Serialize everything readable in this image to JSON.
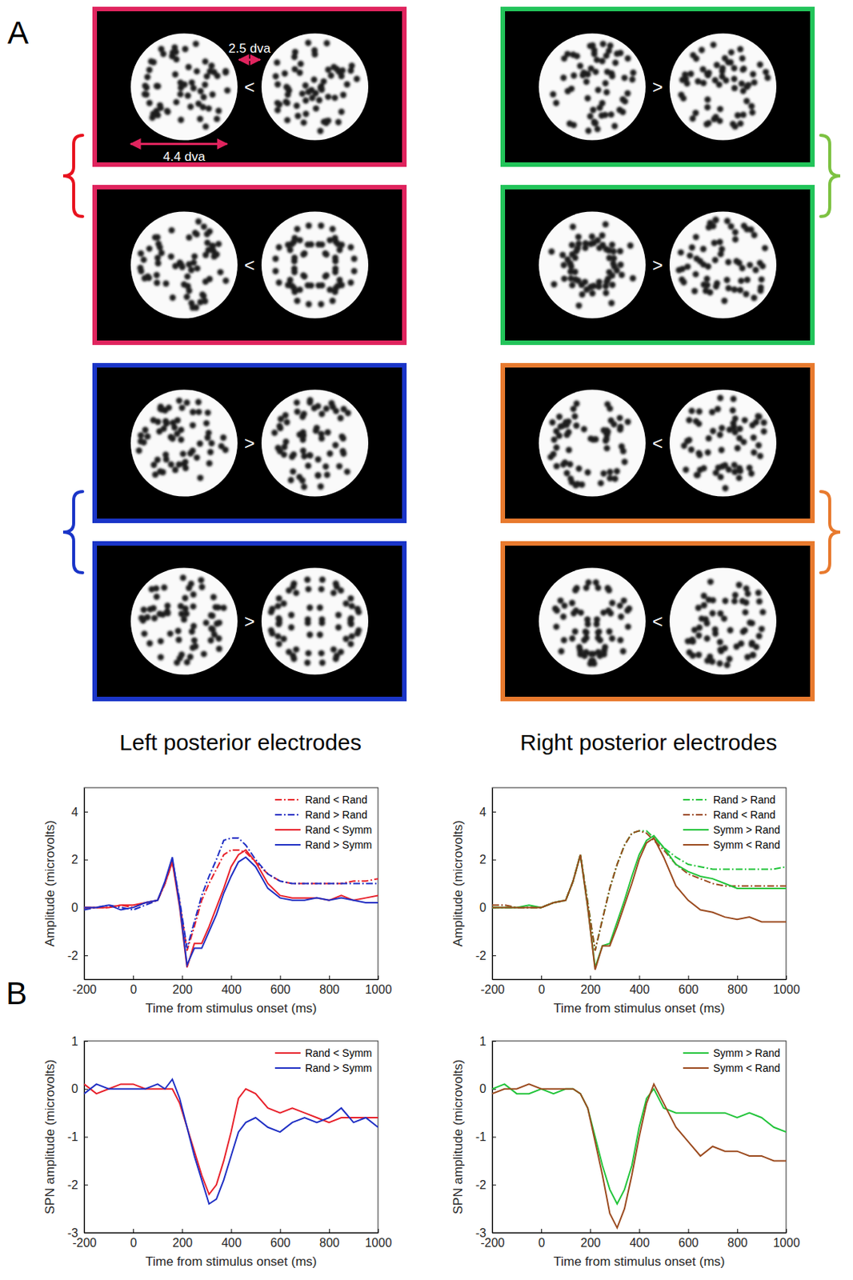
{
  "panel_a": {
    "label": "A",
    "annotations": {
      "gap": "2.5 dva",
      "diameter": "4.4 dva"
    },
    "groups": [
      {
        "side": "left",
        "brace_color": "#e8131f",
        "displays": [
          {
            "symbol": "<",
            "color": "#e0245e"
          },
          {
            "symbol": "<",
            "color": "#e0245e"
          }
        ]
      },
      {
        "side": "left",
        "brace_color": "#1a35c8",
        "displays": [
          {
            "symbol": ">",
            "color": "#1a35c8"
          },
          {
            "symbol": ">",
            "color": "#1a35c8"
          }
        ]
      },
      {
        "side": "right",
        "brace_color": "#7dc242",
        "displays": [
          {
            "symbol": ">",
            "color": "#22c45a"
          },
          {
            "symbol": ">",
            "color": "#22c45a"
          }
        ]
      },
      {
        "side": "right",
        "brace_color": "#e87a2e",
        "displays": [
          {
            "symbol": "<",
            "color": "#e87a2e"
          },
          {
            "symbol": "<",
            "color": "#e87a2e"
          }
        ]
      }
    ]
  },
  "panel_b": {
    "label": "B",
    "column_titles": [
      "Left posterior electrodes",
      "Right posterior electrodes"
    ]
  },
  "chart_data": [
    {
      "type": "line",
      "xlabel": "Time from stimulus onset (ms)",
      "ylabel": "Amplitude (microvolts)",
      "x": [
        -200,
        -150,
        -100,
        -50,
        0,
        50,
        100,
        130,
        160,
        190,
        220,
        250,
        280,
        310,
        340,
        370,
        400,
        430,
        460,
        500,
        550,
        600,
        650,
        700,
        750,
        800,
        850,
        900,
        950,
        1000
      ],
      "xlim": [
        -200,
        1000
      ],
      "xticks": [
        -200,
        0,
        200,
        400,
        600,
        800,
        1000
      ],
      "ylim": [
        -3,
        5
      ],
      "yticks": [
        -2,
        0,
        2,
        4
      ],
      "legend": "upper right",
      "series": [
        {
          "name": "Rand < Rand",
          "color": "#e8202a",
          "line_style": "dashdot",
          "values": [
            0,
            0,
            0,
            0.1,
            0,
            0.2,
            0.3,
            1.0,
            1.9,
            0.2,
            -1.8,
            -0.8,
            0.3,
            1.0,
            1.6,
            2.2,
            2.4,
            2.4,
            2.3,
            1.9,
            1.4,
            1.1,
            1.0,
            1.0,
            1.0,
            1.0,
            1.0,
            1.1,
            1.1,
            1.2
          ]
        },
        {
          "name": "Rand > Rand",
          "color": "#1f2fc4",
          "line_style": "dashdot",
          "values": [
            -0.1,
            0,
            0.1,
            0,
            -0.1,
            0.1,
            0.3,
            1.0,
            2.0,
            0.3,
            -1.7,
            -0.6,
            0.5,
            1.3,
            2.0,
            2.8,
            2.9,
            2.9,
            2.6,
            2.0,
            1.4,
            1.1,
            1.0,
            1.0,
            1.0,
            1.0,
            1.0,
            1.0,
            1.0,
            1.0
          ]
        },
        {
          "name": "Rand < Symm",
          "color": "#e8202a",
          "line_style": "solid",
          "values": [
            0,
            0,
            0,
            0.1,
            0.1,
            0.2,
            0.3,
            1.0,
            1.9,
            0,
            -2.5,
            -1.5,
            -1.5,
            -0.8,
            0,
            0.8,
            1.7,
            2.2,
            2.4,
            1.9,
            1.0,
            0.5,
            0.4,
            0.4,
            0.4,
            0.3,
            0.5,
            0.3,
            0.4,
            0.5
          ]
        },
        {
          "name": "Rand > Symm",
          "color": "#1f2fc4",
          "line_style": "solid",
          "values": [
            0,
            0,
            0.1,
            -0.1,
            0,
            0.2,
            0.3,
            1.1,
            2.1,
            0.1,
            -2.4,
            -1.7,
            -1.7,
            -1.0,
            -0.3,
            0.6,
            1.3,
            1.9,
            2.1,
            1.7,
            0.8,
            0.4,
            0.3,
            0.3,
            0.4,
            0.3,
            0.4,
            0.3,
            0.2,
            0.2
          ]
        }
      ]
    },
    {
      "type": "line",
      "xlabel": "Time from stimulus onset (ms)",
      "ylabel": "Amplitude (microvolts)",
      "x": [
        -200,
        -150,
        -100,
        -50,
        0,
        50,
        100,
        130,
        160,
        190,
        220,
        250,
        280,
        310,
        340,
        370,
        400,
        430,
        460,
        500,
        550,
        600,
        650,
        700,
        750,
        800,
        850,
        900,
        950,
        1000
      ],
      "xlim": [
        -200,
        1000
      ],
      "xticks": [
        -200,
        0,
        200,
        400,
        600,
        800,
        1000
      ],
      "ylim": [
        -3,
        5
      ],
      "yticks": [
        -2,
        0,
        2,
        4
      ],
      "legend": "upper right",
      "series": [
        {
          "name": "Rand > Rand",
          "color": "#22c43a",
          "line_style": "dashdot",
          "values": [
            0,
            0,
            0,
            0,
            0,
            0.2,
            0.3,
            1.1,
            2.2,
            0.2,
            -1.8,
            -0.5,
            0.8,
            1.8,
            2.6,
            3.1,
            3.2,
            3.2,
            2.9,
            2.5,
            2.1,
            1.8,
            1.7,
            1.6,
            1.6,
            1.6,
            1.6,
            1.6,
            1.6,
            1.7
          ]
        },
        {
          "name": "Rand < Rand",
          "color": "#9b4a1e",
          "line_style": "dashdot",
          "values": [
            0.1,
            0.1,
            0,
            0,
            0,
            0.2,
            0.3,
            1.1,
            2.2,
            0.2,
            -1.8,
            -0.5,
            0.8,
            1.8,
            2.6,
            3.1,
            3.2,
            3.1,
            2.8,
            2.4,
            1.8,
            1.4,
            1.2,
            1.0,
            0.9,
            0.9,
            0.9,
            0.9,
            0.9,
            0.9
          ]
        },
        {
          "name": "Symm > Rand",
          "color": "#22c43a",
          "line_style": "solid",
          "values": [
            0,
            0,
            0,
            0.1,
            0,
            0.2,
            0.3,
            1.1,
            2.2,
            0,
            -2.5,
            -1.6,
            -1.5,
            -0.6,
            0.3,
            1.3,
            2.2,
            2.8,
            3.0,
            2.5,
            1.8,
            1.5,
            1.3,
            1.2,
            1.0,
            0.8,
            0.8,
            0.8,
            0.8,
            0.8
          ]
        },
        {
          "name": "Symm < Rand",
          "color": "#9b4a1e",
          "line_style": "solid",
          "values": [
            0,
            0,
            0,
            0,
            0,
            0.2,
            0.3,
            1.1,
            2.2,
            0,
            -2.6,
            -1.6,
            -1.6,
            -0.8,
            0.1,
            1.0,
            2.0,
            2.7,
            2.9,
            2.1,
            0.9,
            0.3,
            -0.1,
            -0.2,
            -0.4,
            -0.5,
            -0.4,
            -0.6,
            -0.6,
            -0.6
          ]
        }
      ]
    },
    {
      "type": "line",
      "xlabel": "Time from stimulus onset (ms)",
      "ylabel": "SPN amplitude (microvolts)",
      "x": [
        -200,
        -150,
        -100,
        -50,
        0,
        50,
        100,
        130,
        160,
        190,
        220,
        250,
        280,
        310,
        340,
        370,
        400,
        430,
        460,
        500,
        550,
        600,
        650,
        700,
        750,
        800,
        850,
        900,
        950,
        1000
      ],
      "xlim": [
        -200,
        1000
      ],
      "xticks": [
        -200,
        0,
        200,
        400,
        600,
        800,
        1000
      ],
      "ylim": [
        -3,
        1
      ],
      "yticks": [
        -3,
        -2,
        -1,
        0,
        1
      ],
      "legend": "upper right",
      "series": [
        {
          "name": "Rand < Symm",
          "color": "#e8202a",
          "line_style": "solid",
          "values": [
            0.1,
            -0.1,
            0,
            0.1,
            0.1,
            0,
            0,
            0,
            0,
            -0.3,
            -0.8,
            -1.3,
            -1.8,
            -2.2,
            -2.0,
            -1.5,
            -0.9,
            -0.2,
            0,
            -0.1,
            -0.4,
            -0.5,
            -0.4,
            -0.5,
            -0.6,
            -0.7,
            -0.6,
            -0.6,
            -0.6,
            -0.6
          ]
        },
        {
          "name": "Rand > Symm",
          "color": "#1f2fc4",
          "line_style": "solid",
          "values": [
            -0.1,
            0.1,
            0,
            0,
            0,
            0,
            0.1,
            0,
            0.2,
            -0.2,
            -0.8,
            -1.4,
            -1.9,
            -2.4,
            -2.3,
            -1.9,
            -1.4,
            -0.9,
            -0.7,
            -0.6,
            -0.8,
            -0.9,
            -0.7,
            -0.6,
            -0.7,
            -0.6,
            -0.4,
            -0.7,
            -0.6,
            -0.8
          ]
        }
      ]
    },
    {
      "type": "line",
      "xlabel": "Time from stimulus onset (ms)",
      "ylabel": "SPN amplitude (microvolts)",
      "x": [
        -200,
        -150,
        -100,
        -50,
        0,
        50,
        100,
        130,
        160,
        190,
        220,
        250,
        280,
        310,
        340,
        370,
        400,
        430,
        460,
        500,
        550,
        600,
        650,
        700,
        750,
        800,
        850,
        900,
        950,
        1000
      ],
      "xlim": [
        -200,
        1000
      ],
      "xticks": [
        -200,
        0,
        200,
        400,
        600,
        800,
        1000
      ],
      "ylim": [
        -3,
        1
      ],
      "yticks": [
        -3,
        -2,
        -1,
        0,
        1
      ],
      "legend": "upper right",
      "series": [
        {
          "name": "Symm > Rand",
          "color": "#22c43a",
          "line_style": "solid",
          "values": [
            0,
            0.1,
            -0.1,
            -0.1,
            0,
            -0.1,
            0,
            0,
            -0.1,
            -0.4,
            -1.0,
            -1.6,
            -2.1,
            -2.4,
            -2.1,
            -1.6,
            -0.8,
            -0.2,
            0,
            -0.4,
            -0.5,
            -0.5,
            -0.5,
            -0.5,
            -0.5,
            -0.6,
            -0.5,
            -0.6,
            -0.8,
            -0.9
          ]
        },
        {
          "name": "Symm < Rand",
          "color": "#9b4a1e",
          "line_style": "solid",
          "values": [
            -0.1,
            0,
            0,
            0.1,
            0,
            0,
            0,
            0,
            -0.1,
            -0.4,
            -1.1,
            -1.8,
            -2.6,
            -2.9,
            -2.5,
            -1.8,
            -1.0,
            -0.3,
            0.1,
            -0.3,
            -0.8,
            -1.1,
            -1.4,
            -1.2,
            -1.3,
            -1.3,
            -1.4,
            -1.4,
            -1.5,
            -1.5
          ]
        }
      ]
    }
  ]
}
